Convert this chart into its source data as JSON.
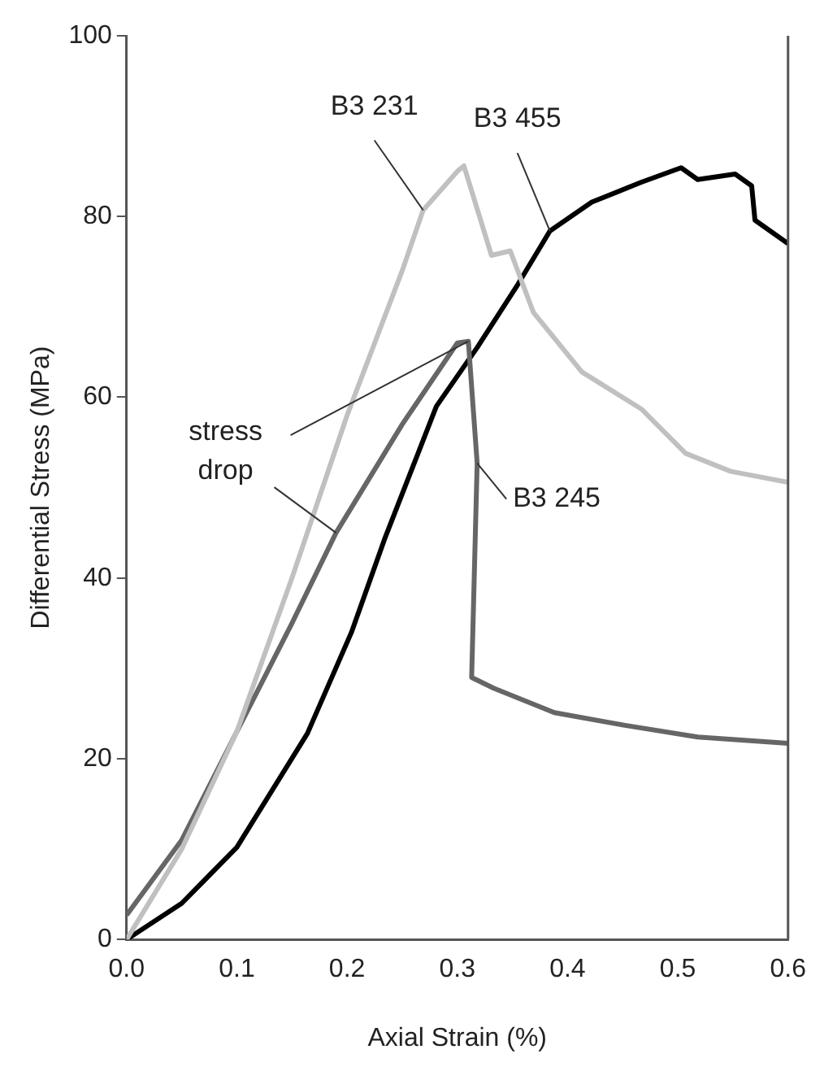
{
  "chart_data": {
    "type": "line",
    "xlabel": "Axial Strain (%)",
    "ylabel": "Differential Stress (MPa)",
    "xlim": [
      0,
      0.6
    ],
    "xticks": [
      {
        "value": 0,
        "label": "0.0"
      },
      {
        "value": 0.1,
        "label": "0.1"
      },
      {
        "value": 0.2,
        "label": "0.2"
      },
      {
        "value": 0.3,
        "label": "0.3"
      },
      {
        "value": 0.4,
        "label": "0.4"
      },
      {
        "value": 0.5,
        "label": "0.5"
      },
      {
        "value": 0.6,
        "label": "0.6"
      }
    ],
    "ylim": [
      0,
      100
    ],
    "yticks": [
      0,
      20,
      40,
      60,
      80,
      100
    ],
    "grid": false,
    "legend": false,
    "marker": "none",
    "line_style": "solid",
    "series": [
      {
        "name": "B3 231",
        "color": "#c0c0c0",
        "x": [
          0,
          0.05,
          0.1,
          0.15,
          0.2,
          0.25,
          0.269,
          0.3,
          0.306,
          0.331,
          0.348,
          0.369,
          0.413,
          0.467,
          0.507,
          0.548,
          0.6
        ],
        "values": [
          0,
          10,
          23,
          40,
          58,
          74,
          80.7,
          85,
          85.6,
          75.7,
          76.2,
          69.4,
          62.8,
          58.7,
          53.8,
          51.8,
          50.6
        ]
      },
      {
        "name": "B3 245",
        "color": "#666666",
        "x": [
          0,
          0.05,
          0.1,
          0.15,
          0.19,
          0.25,
          0.3,
          0.31,
          0.318,
          0.313,
          0.333,
          0.388,
          0.452,
          0.518,
          0.6
        ],
        "values": [
          2.7,
          11,
          23,
          35,
          45,
          57,
          66,
          66.2,
          52.7,
          29,
          27.8,
          25.1,
          23.7,
          22.4,
          21.7
        ]
      },
      {
        "name": "B3 455",
        "color": "#000000",
        "x": [
          0,
          0.05,
          0.1,
          0.164,
          0.204,
          0.234,
          0.281,
          0.318,
          0.355,
          0.384,
          0.422,
          0.467,
          0.503,
          0.518,
          0.552,
          0.567,
          0.57,
          0.6
        ],
        "values": [
          0,
          4,
          10.2,
          22.8,
          34,
          44.3,
          59,
          65.5,
          72.5,
          78.4,
          81.6,
          83.8,
          85.4,
          84.1,
          84.7,
          83.4,
          79.6,
          77
        ]
      }
    ],
    "annotations": [
      {
        "text": "stress drop",
        "x": 0.19,
        "y": 45
      }
    ]
  }
}
